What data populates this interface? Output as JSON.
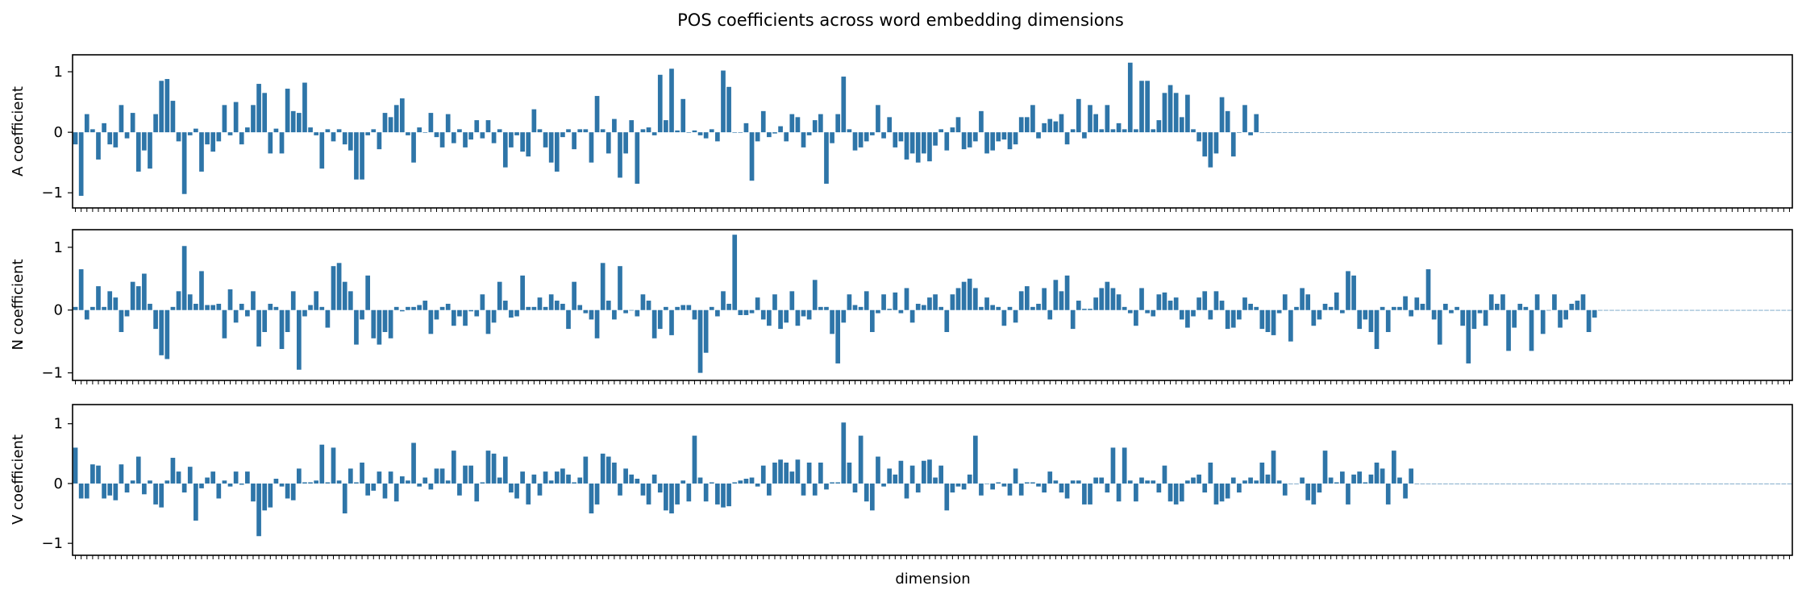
{
  "figure": {
    "title": "POS coefficients across word embedding dimensions",
    "xlabel": "dimension"
  },
  "colors": {
    "bar": "#2e75a8",
    "axis": "#000000",
    "background": "#ffffff"
  },
  "chart_data": [
    {
      "type": "bar",
      "title": "",
      "xlabel": "",
      "ylabel": "A coefficient",
      "ylim": [
        -1.25,
        1.28
      ],
      "yticks": [
        -1,
        0,
        1
      ],
      "grid": false,
      "tick_labels_x": "hidden",
      "x_count": 300,
      "values": [
        -0.2,
        -1.05,
        0.3,
        0.05,
        -0.45,
        0.15,
        -0.2,
        -0.25,
        0.45,
        -0.1,
        0.32,
        -0.65,
        -0.3,
        -0.6,
        0.3,
        0.85,
        0.88,
        0.52,
        -0.15,
        -1.02,
        -0.05,
        0.06,
        -0.65,
        -0.2,
        -0.32,
        -0.15,
        0.45,
        -0.05,
        0.5,
        -0.2,
        0.08,
        0.45,
        0.8,
        0.65,
        -0.35,
        0.06,
        -0.35,
        0.72,
        0.35,
        0.32,
        0.82,
        0.08,
        -0.05,
        -0.6,
        0.05,
        -0.15,
        0.05,
        -0.2,
        -0.3,
        -0.78,
        -0.78,
        -0.05,
        0.05,
        -0.28,
        0.32,
        0.25,
        0.45,
        0.56,
        -0.05,
        -0.5,
        0.08,
        0.0,
        0.32,
        -0.08,
        -0.25,
        0.3,
        -0.18,
        0.05,
        -0.25,
        -0.12,
        0.2,
        -0.1,
        0.2,
        -0.18,
        0.05,
        -0.58,
        -0.25,
        -0.05,
        -0.32,
        -0.4,
        0.38,
        0.05,
        -0.25,
        -0.5,
        -0.65,
        -0.08,
        0.05,
        -0.28,
        0.05,
        0.05,
        -0.5,
        0.6,
        0.05,
        -0.35,
        0.22,
        -0.75,
        -0.35,
        0.2,
        -0.85,
        0.05,
        0.08,
        -0.05,
        0.95,
        0.2,
        1.05,
        0.03,
        0.55,
        0.0,
        0.03,
        -0.05,
        -0.1,
        0.05,
        -0.15,
        1.02,
        0.75,
        0.0,
        0.0,
        0.15,
        -0.8,
        -0.15,
        0.35,
        -0.08,
        -0.02,
        0.1,
        -0.15,
        0.3,
        0.25,
        -0.25,
        -0.05,
        0.2,
        0.3,
        -0.85,
        -0.18,
        0.3,
        0.92,
        0.05,
        -0.3,
        -0.25,
        -0.15,
        -0.05,
        0.45,
        -0.1,
        0.25,
        -0.25,
        -0.15,
        -0.45,
        -0.35,
        -0.5,
        -0.35,
        -0.48,
        -0.22,
        0.05,
        -0.3,
        0.08,
        0.25,
        -0.28,
        -0.25,
        -0.15,
        0.35,
        -0.35,
        -0.3,
        -0.15,
        -0.12,
        -0.28,
        -0.2,
        0.25,
        0.25,
        0.45,
        -0.1,
        0.15,
        0.22,
        0.18,
        0.3,
        -0.2,
        0.05,
        0.55,
        -0.1,
        0.45,
        0.3,
        0.05,
        0.45,
        0.05,
        0.15,
        0.05,
        1.15,
        0.05,
        0.85,
        0.85,
        0.05,
        0.2,
        0.65,
        0.78,
        0.65,
        0.25,
        0.62,
        0.05,
        -0.15,
        -0.4,
        -0.58,
        -0.35,
        0.58,
        0.35,
        -0.4,
        0.0,
        0.45,
        -0.05,
        0.3,
        0.0,
        0.0,
        0.0,
        0.0,
        0.0,
        0.0,
        0.0,
        0.0,
        0.0,
        0.0,
        0.0,
        0.0,
        0.0,
        0.0,
        0.0,
        0.0,
        0.0,
        0.0,
        0.0,
        0.0,
        0.0,
        0.0,
        0.0,
        0.0,
        0.0,
        0.0,
        0.0,
        0.0,
        0.0,
        0.0,
        0.0,
        0.0,
        0.0,
        0.0,
        0.0,
        0.0,
        0.0,
        0.0,
        0.0,
        0.0,
        0.0,
        0.0,
        0.0,
        0.0,
        0.0,
        0.0,
        0.0,
        0.0,
        0.0,
        0.0,
        0.0,
        0.0,
        0.0,
        0.0,
        0.0,
        0.0,
        0.0,
        0.0,
        0.0,
        0.0,
        0.0,
        0.0,
        0.0,
        0.0,
        0.0,
        0.0,
        0.0,
        0.0,
        0.0,
        0.0,
        0.0,
        0.0,
        0.0,
        0.0,
        0.0,
        0.0,
        0.0,
        0.0,
        0.0,
        0.0,
        0.0,
        0.0,
        0.0,
        0.0,
        0.0,
        0.0,
        0.0,
        0.0,
        0.0,
        0.0,
        0.0,
        0.0,
        0.0,
        0.0,
        0.0,
        0.0,
        0.0
      ]
    },
    {
      "type": "bar",
      "title": "",
      "xlabel": "",
      "ylabel": "N coefficient",
      "ylim": [
        -1.12,
        1.28
      ],
      "yticks": [
        -1,
        0,
        1
      ],
      "grid": false,
      "tick_labels_x": "hidden",
      "x_count": 300,
      "values": [
        0.05,
        0.65,
        -0.15,
        0.05,
        0.38,
        0.05,
        0.3,
        0.2,
        -0.35,
        -0.1,
        0.45,
        0.38,
        0.58,
        0.1,
        -0.3,
        -0.72,
        -0.78,
        0.05,
        0.3,
        1.02,
        0.25,
        0.1,
        0.62,
        0.08,
        0.08,
        0.1,
        -0.45,
        0.33,
        -0.2,
        0.1,
        -0.1,
        0.3,
        -0.58,
        -0.35,
        0.1,
        0.05,
        -0.62,
        -0.35,
        0.3,
        -0.95,
        -0.1,
        0.08,
        0.3,
        0.05,
        -0.28,
        0.7,
        0.75,
        0.45,
        0.3,
        -0.55,
        -0.15,
        0.55,
        -0.45,
        -0.55,
        -0.35,
        -0.45,
        0.05,
        -0.02,
        0.05,
        0.05,
        0.08,
        0.15,
        -0.38,
        -0.15,
        0.05,
        0.1,
        -0.25,
        -0.1,
        -0.25,
        -0.02,
        -0.1,
        0.25,
        -0.38,
        -0.2,
        0.45,
        0.15,
        -0.12,
        -0.1,
        0.55,
        0.05,
        0.05,
        0.2,
        0.05,
        0.25,
        0.15,
        0.1,
        -0.3,
        0.45,
        0.08,
        -0.05,
        -0.15,
        -0.45,
        0.75,
        0.15,
        -0.15,
        0.7,
        -0.05,
        0.0,
        -0.1,
        0.25,
        0.15,
        -0.45,
        -0.3,
        0.05,
        -0.4,
        0.05,
        0.08,
        0.08,
        -0.15,
        -1.0,
        -0.68,
        0.05,
        -0.1,
        0.3,
        0.1,
        1.2,
        -0.08,
        -0.08,
        -0.05,
        0.2,
        -0.15,
        -0.25,
        0.25,
        -0.3,
        -0.2,
        0.3,
        -0.25,
        -0.1,
        -0.15,
        0.48,
        0.05,
        0.05,
        -0.38,
        -0.85,
        -0.2,
        0.25,
        0.08,
        0.05,
        0.3,
        -0.35,
        -0.05,
        0.25,
        0.02,
        0.28,
        -0.05,
        0.35,
        -0.2,
        0.1,
        0.08,
        0.2,
        0.25,
        0.05,
        -0.35,
        0.25,
        0.35,
        0.45,
        0.5,
        0.35,
        0.05,
        0.2,
        0.08,
        0.05,
        -0.25,
        0.05,
        -0.2,
        0.3,
        0.38,
        0.05,
        0.1,
        0.35,
        -0.15,
        0.48,
        0.3,
        0.55,
        -0.3,
        0.15,
        0.02,
        0.02,
        0.2,
        0.35,
        0.45,
        0.35,
        0.25,
        0.05,
        -0.05,
        -0.25,
        0.35,
        -0.05,
        -0.1,
        0.25,
        0.28,
        0.15,
        0.2,
        -0.15,
        -0.28,
        -0.1,
        0.2,
        0.3,
        -0.15,
        0.3,
        0.15,
        -0.3,
        -0.28,
        -0.15,
        0.2,
        0.1,
        0.05,
        -0.3,
        -0.35,
        -0.4,
        -0.05,
        0.25,
        -0.5,
        0.05,
        0.35,
        0.25,
        -0.25,
        -0.15,
        0.1,
        0.05,
        0.28,
        -0.05,
        0.62,
        0.55,
        -0.3,
        -0.15,
        -0.35,
        -0.62,
        0.05,
        -0.35,
        0.05,
        0.05,
        0.22,
        -0.1,
        0.2,
        0.1,
        0.65,
        -0.15,
        -0.55,
        0.1,
        -0.05,
        0.05,
        -0.25,
        -0.85,
        -0.3,
        -0.05,
        -0.25,
        0.25,
        0.1,
        0.25,
        -0.65,
        -0.28,
        0.1,
        0.05,
        -0.65,
        0.25,
        -0.38,
        0.0,
        0.25,
        -0.28,
        -0.15,
        0.1,
        0.15,
        0.25,
        -0.35,
        -0.12,
        0.0,
        0.0,
        0.0,
        0.0,
        0.0,
        0.0,
        0.0,
        0.0,
        0.0,
        0.0,
        0.0,
        0.0,
        0.0,
        0.0,
        0.0,
        0.0,
        0.0,
        0.0,
        0.0,
        0.0,
        0.0,
        0.0,
        0.0,
        0.0,
        0.0,
        0.0,
        0.0,
        0.0,
        0.0,
        0.0,
        0.0,
        0.0,
        0.0,
        0.0,
        0.0
      ]
    },
    {
      "type": "bar",
      "title": "",
      "xlabel": "",
      "ylabel": "V coefficient",
      "ylim": [
        -1.2,
        1.32
      ],
      "yticks": [
        -1,
        0,
        1
      ],
      "grid": false,
      "tick_labels_x": "hidden",
      "x_count": 300,
      "values": [
        0.6,
        -0.25,
        -0.25,
        0.32,
        0.3,
        -0.25,
        -0.2,
        -0.28,
        0.32,
        -0.15,
        0.05,
        0.45,
        -0.18,
        0.05,
        -0.35,
        -0.4,
        0.05,
        0.43,
        0.2,
        -0.15,
        0.28,
        -0.62,
        -0.08,
        0.1,
        0.2,
        -0.25,
        0.05,
        -0.05,
        0.2,
        -0.02,
        0.2,
        -0.3,
        -0.88,
        -0.45,
        -0.4,
        0.08,
        -0.05,
        -0.25,
        -0.28,
        0.25,
        0.02,
        0.02,
        0.05,
        0.65,
        0.02,
        0.6,
        0.05,
        -0.5,
        0.25,
        0.02,
        0.35,
        -0.2,
        -0.12,
        0.2,
        -0.25,
        0.2,
        -0.3,
        0.12,
        0.05,
        0.68,
        -0.05,
        0.1,
        -0.1,
        0.25,
        0.25,
        0.05,
        0.55,
        -0.2,
        0.3,
        0.3,
        -0.3,
        0.02,
        0.55,
        0.5,
        0.1,
        0.45,
        -0.15,
        -0.25,
        0.2,
        -0.35,
        0.15,
        -0.2,
        0.2,
        0.05,
        0.2,
        0.25,
        0.15,
        0.02,
        0.1,
        0.45,
        -0.5,
        -0.35,
        0.5,
        0.45,
        0.35,
        -0.2,
        0.25,
        0.15,
        0.08,
        -0.2,
        -0.35,
        0.15,
        -0.15,
        -0.45,
        -0.5,
        -0.35,
        0.05,
        -0.3,
        0.8,
        0.1,
        -0.3,
        0.02,
        -0.35,
        -0.4,
        -0.38,
        0.02,
        0.05,
        0.08,
        0.1,
        -0.05,
        0.3,
        -0.2,
        0.35,
        0.4,
        0.35,
        0.2,
        0.4,
        -0.2,
        0.35,
        -0.2,
        0.35,
        -0.1,
        0.02,
        0.02,
        1.02,
        0.35,
        -0.15,
        0.8,
        -0.3,
        -0.45,
        0.45,
        -0.05,
        0.25,
        0.15,
        0.38,
        -0.25,
        0.3,
        -0.15,
        0.38,
        0.4,
        0.1,
        0.3,
        -0.45,
        -0.15,
        -0.05,
        -0.1,
        0.15,
        0.8,
        -0.2,
        0.0,
        -0.1,
        0.02,
        -0.05,
        -0.2,
        0.25,
        -0.2,
        0.02,
        0.02,
        -0.05,
        -0.15,
        0.2,
        0.05,
        -0.15,
        -0.25,
        0.05,
        0.05,
        -0.35,
        -0.35,
        0.1,
        0.1,
        -0.15,
        0.6,
        -0.3,
        0.6,
        0.05,
        -0.3,
        0.1,
        0.05,
        0.05,
        -0.15,
        0.3,
        -0.3,
        -0.35,
        -0.3,
        0.05,
        0.1,
        0.15,
        -0.15,
        0.35,
        -0.35,
        -0.3,
        -0.25,
        0.1,
        -0.15,
        0.05,
        0.1,
        0.05,
        0.35,
        0.15,
        0.55,
        0.05,
        -0.2,
        0.0,
        0.0,
        0.1,
        -0.28,
        -0.35,
        -0.15,
        0.55,
        0.1,
        0.02,
        0.2,
        -0.35,
        0.15,
        0.2,
        0.02,
        0.15,
        0.35,
        0.25,
        -0.35,
        0.55,
        0.1,
        -0.25,
        0.25,
        0.0,
        0.0,
        0.0,
        0.0,
        0.0,
        0.0,
        0.0,
        0.0,
        0.0,
        0.0,
        0.0,
        0.0,
        0.0,
        0.0,
        0.0,
        0.0,
        0.0,
        0.0,
        0.0,
        0.0,
        0.0,
        0.0,
        0.0,
        0.0,
        0.0,
        0.0,
        0.0,
        0.0,
        0.0,
        0.0,
        0.0,
        0.0,
        0.0,
        0.0,
        0.0,
        0.0,
        0.0,
        0.0,
        0.0,
        0.0,
        0.0,
        0.0,
        0.0,
        0.0,
        0.0,
        0.0,
        0.0,
        0.0,
        0.0,
        0.0,
        0.0,
        0.0,
        0.0,
        0.0,
        0.0,
        0.0
      ]
    }
  ]
}
